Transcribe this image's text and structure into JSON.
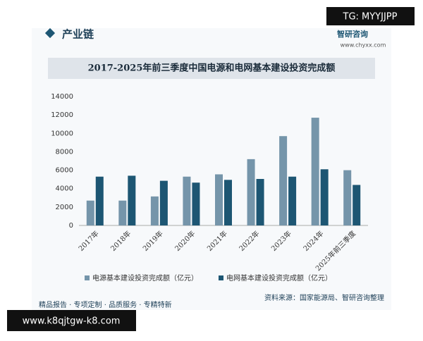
{
  "overlay_top": "TG: MYYJJPP",
  "overlay_bottom": "www.k8qjtgw-k8.com",
  "header": {
    "title": "产业链",
    "brand": "智研咨询",
    "site": "www.chyxx.com"
  },
  "footer": {
    "slogan": "精品报告 · 专项定制 · 品质服务 · 专精特新",
    "source": "资料来源：国家能源局、智研咨询整理"
  },
  "chart_data": {
    "type": "bar",
    "title": "2017-2025年前三季度中国电源和电网基本建设投资完成额",
    "categories": [
      "2017年",
      "2018年",
      "2019年",
      "2020年",
      "2021年",
      "2022年",
      "2023年",
      "2024年",
      "2025年前三季度"
    ],
    "series": [
      {
        "name": "电源基本建设投资完成额（亿元）",
        "color": "#7595aa",
        "values": [
          2700,
          2700,
          3150,
          5300,
          5550,
          7200,
          9700,
          11700,
          6000
        ]
      },
      {
        "name": "电网基本建设投资完成额（亿元）",
        "color": "#1d5673",
        "values": [
          5300,
          5400,
          4850,
          4650,
          4950,
          5050,
          5300,
          6100,
          4400
        ]
      }
    ],
    "ylim": [
      0,
      14000
    ],
    "yticks": [
      0,
      2000,
      4000,
      6000,
      8000,
      10000,
      12000,
      14000
    ],
    "legend": "bottom"
  }
}
